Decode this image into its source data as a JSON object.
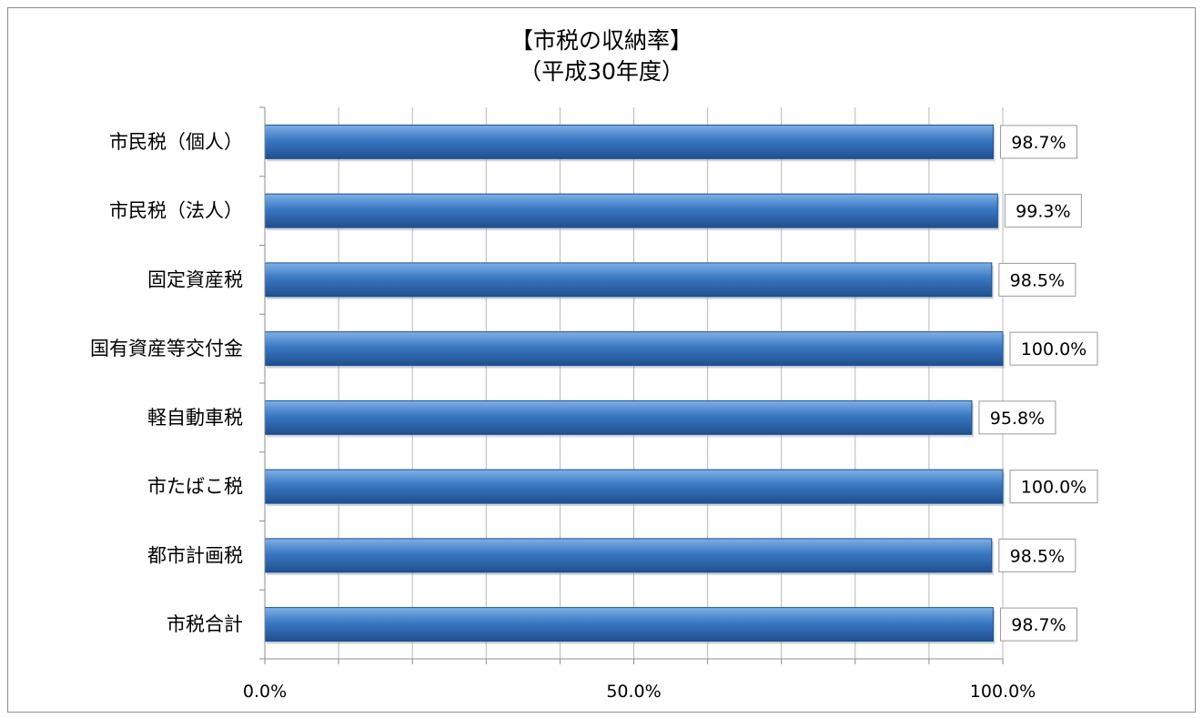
{
  "chart_data": {
    "type": "bar",
    "orientation": "horizontal",
    "title": "【市税の収納率】\n（平成30年度）",
    "categories": [
      "市民税（個人）",
      "市民税（法人）",
      "固定資産税",
      "国有資産等交付金",
      "軽自動車税",
      "市たばこ税",
      "都市計画税",
      "市税合計"
    ],
    "series": [
      {
        "values": [
          98.7,
          99.3,
          98.5,
          100.0,
          95.8,
          100.0,
          98.5,
          98.7
        ]
      }
    ],
    "data_labels": [
      "98.7%",
      "99.3%",
      "98.5%",
      "100.0%",
      "95.8%",
      "100.0%",
      "98.5%",
      "98.7%"
    ],
    "xlim": [
      0,
      100
    ],
    "xticks": [
      0,
      50,
      100
    ],
    "xtick_labels": [
      "0.0%",
      "50.0%",
      "100.0%"
    ],
    "grid": true,
    "legend": "none",
    "colors": {
      "bar": "#3a78c2",
      "bar_light": "#7fb0e6",
      "bar_dark": "#1f4f8f",
      "grid": "#b8b8b8",
      "axis": "#8c8c8c",
      "label_border": "#9a9a9a"
    }
  }
}
